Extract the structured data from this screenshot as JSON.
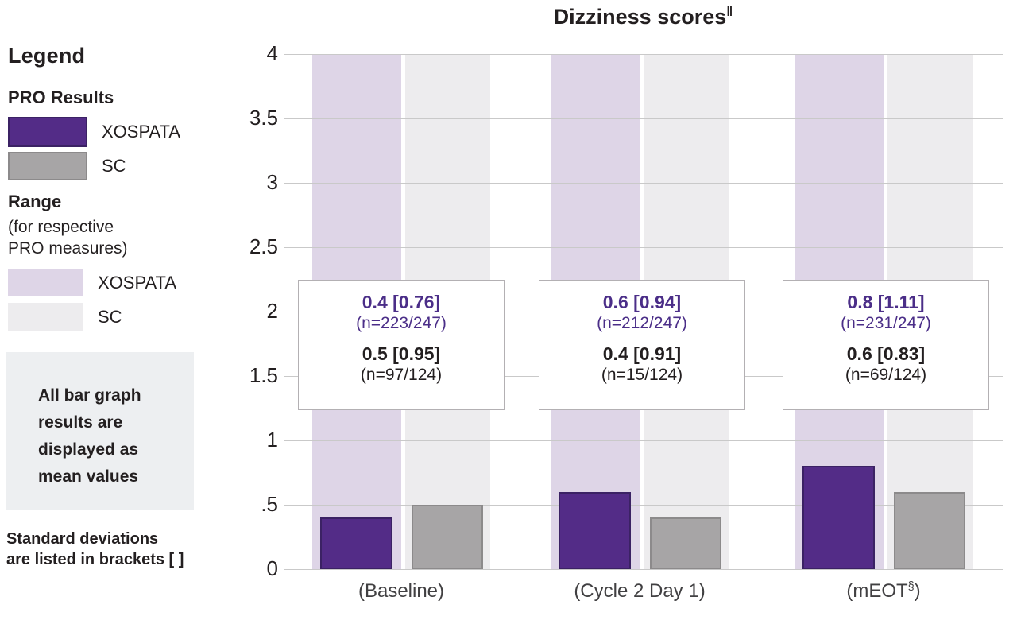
{
  "legend": {
    "title": "Legend",
    "pro_results": {
      "heading": "PRO Results",
      "items": [
        {
          "label": "XOSPATA",
          "color": "#532c87"
        },
        {
          "label": "SC",
          "color": "#a7a5a6"
        }
      ]
    },
    "range": {
      "heading": "Range",
      "subheading_lines": [
        "(for respective",
        "PRO measures)"
      ],
      "items": [
        {
          "label": "XOSPATA",
          "color": "#ded5e7"
        },
        {
          "label": "SC",
          "color": "#edecee"
        }
      ]
    },
    "note_box_lines": [
      "All bar graph",
      "results are",
      "displayed as",
      "mean values"
    ],
    "footnote_lines": [
      "Standard deviations",
      "are listed in brackets [ ]"
    ]
  },
  "chart_data": {
    "type": "bar",
    "title": "Dizziness scores",
    "title_superscript": "‖",
    "categories": [
      "(Baseline)",
      "(Cycle 2 Day 1)",
      "(mEOT§)"
    ],
    "x_label_parts": [
      {
        "pre": "(Baseline)",
        "sup": "",
        "post": ""
      },
      {
        "pre": "(Cycle 2 Day 1)",
        "sup": "",
        "post": ""
      },
      {
        "pre": "(mEOT",
        "sup": "§",
        "post": ")"
      }
    ],
    "y_axis": {
      "min": 0,
      "max": 4,
      "step": 0.5,
      "tick_labels": [
        "0",
        ".5",
        "1",
        "1.5",
        "2",
        "2.5",
        "3",
        "3.5",
        "4"
      ]
    },
    "grid": true,
    "series": [
      {
        "name": "XOSPATA",
        "color": "#532c87",
        "border_color": "#3b2264",
        "values": [
          0.4,
          0.6,
          0.8
        ],
        "sd": [
          0.76,
          0.94,
          1.11
        ],
        "n": [
          "223/247",
          "212/247",
          "231/247"
        ]
      },
      {
        "name": "SC",
        "color": "#a7a5a6",
        "border_color": "#8c8a8b",
        "values": [
          0.5,
          0.4,
          0.6
        ],
        "sd": [
          0.95,
          0.91,
          0.83
        ],
        "n": [
          "97/124",
          "15/124",
          "69/124"
        ]
      }
    ],
    "range_bands": [
      {
        "name": "XOSPATA",
        "color": "#ded5e7",
        "span": [
          0,
          4
        ]
      },
      {
        "name": "SC",
        "color": "#edecee",
        "span": [
          0,
          4
        ]
      }
    ],
    "annotations": [
      {
        "xospata_value": "0.4 [0.76]",
        "xospata_n": "(n=223/247)",
        "sc_value": "0.5 [0.95]",
        "sc_n": "(n=97/124)"
      },
      {
        "xospata_value": "0.6 [0.94]",
        "xospata_n": "(n=212/247)",
        "sc_value": "0.4 [0.91]",
        "sc_n": "(n=15/124)"
      },
      {
        "xospata_value": "0.8 [1.11]",
        "xospata_n": "(n=231/247)",
        "sc_value": "0.6 [0.83]",
        "sc_n": "(n=69/124)"
      }
    ],
    "colors": {
      "gridline": "#c9c9c9",
      "annotation_box_border": "#b3b0b3",
      "annotation_text_xospata": "#4b2e88",
      "annotation_text_sc": "#231f20",
      "x_label_text": "#414042",
      "note_box_background": "#edeff1"
    }
  }
}
